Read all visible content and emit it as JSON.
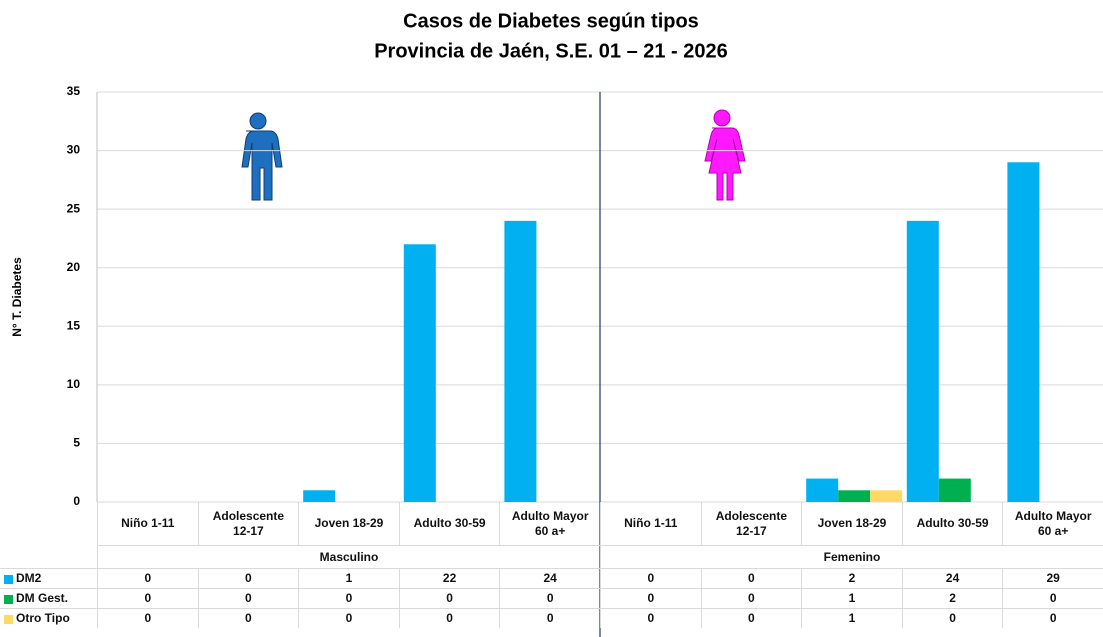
{
  "chart_data": {
    "type": "bar",
    "title": "Casos de Diabetes según tipos",
    "subtitle": "Provincia de Jaén, S.E. 01 – 21 - 2026",
    "y_label": "N° T. Diabetes",
    "groups": [
      {
        "name": "Masculino",
        "categories": [
          "Niño 1-11",
          "Adolescente\n12-17",
          "Joven 18-29",
          "Adulto 30-59",
          "Adulto Mayor\n60 a+"
        ]
      },
      {
        "name": "Femenino",
        "categories": [
          "Niño 1-11",
          "Adolescente\n12-17",
          "Joven 18-29",
          "Adulto 30-59",
          "Adulto Mayor\n60 a+"
        ]
      }
    ],
    "series": [
      {
        "name": "DM2",
        "color": "#00b0f0",
        "values": [
          0,
          0,
          1,
          22,
          24,
          0,
          0,
          2,
          24,
          29
        ]
      },
      {
        "name": "DM Gest.",
        "color": "#00b050",
        "values": [
          0,
          0,
          0,
          0,
          0,
          0,
          0,
          1,
          2,
          0
        ]
      },
      {
        "name": "Otro Tipo",
        "color": "#ffd966",
        "values": [
          0,
          0,
          0,
          0,
          0,
          0,
          0,
          1,
          0,
          0
        ]
      }
    ],
    "ylim": [
      0,
      35
    ],
    "yticks": [
      0,
      5,
      10,
      15,
      20,
      25,
      30,
      35
    ],
    "grid": true
  }
}
